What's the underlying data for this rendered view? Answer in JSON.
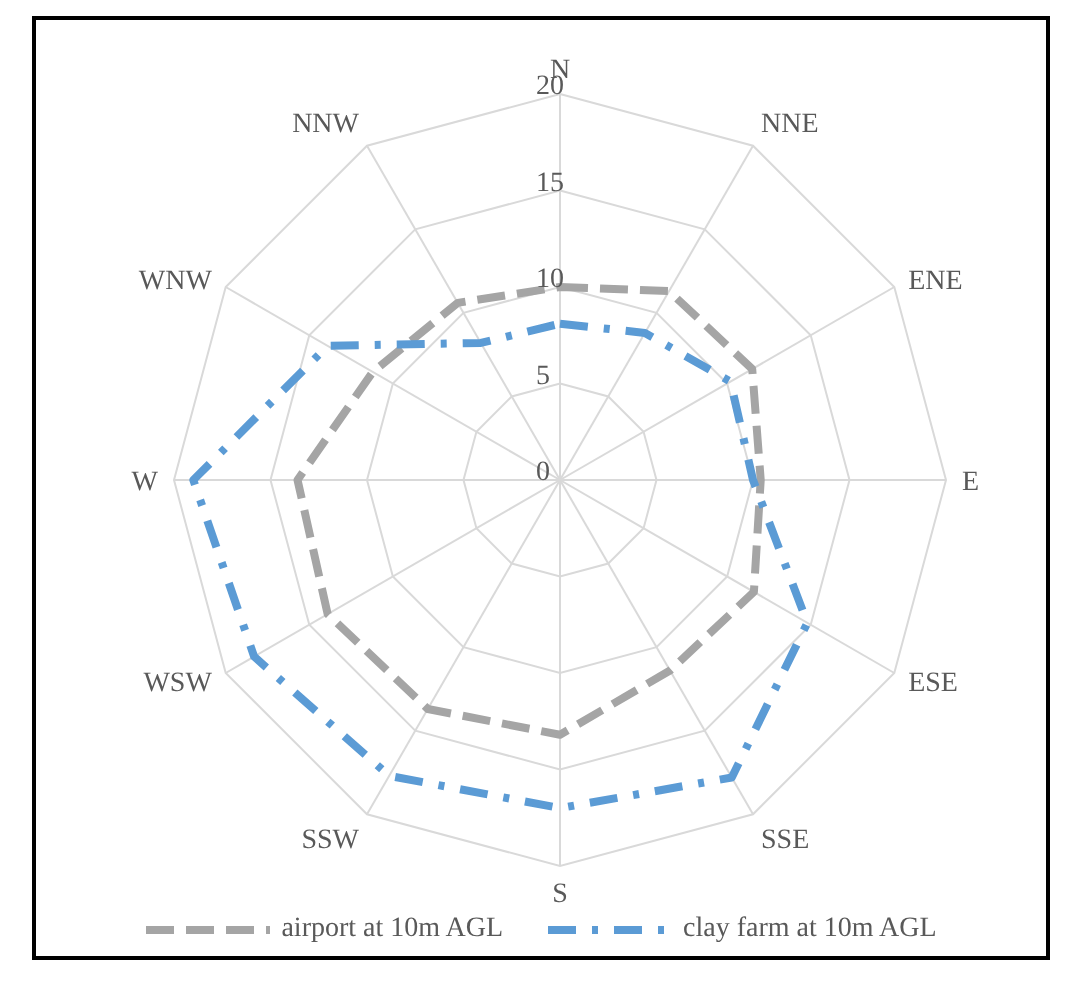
{
  "chart_data": {
    "type": "radar",
    "categories": [
      "N",
      "NNE",
      "ENE",
      "E",
      "ESE",
      "SSE",
      "S",
      "SSW",
      "WSW",
      "W",
      "WNW",
      "NNW"
    ],
    "series": [
      {
        "name": "airport at 10m AGL",
        "color": "#a5a5a5",
        "line_style": "dashed",
        "values": [
          10,
          11.3,
          11.5,
          10.4,
          11.6,
          11.4,
          13.2,
          13.7,
          13.9,
          13.6,
          11.2,
          10.6
        ]
      },
      {
        "name": "clay farm at 10m AGL",
        "color": "#5b9bd5",
        "line_style": "dashed",
        "values": [
          8.1,
          8.8,
          10.2,
          10,
          14.8,
          17.8,
          17,
          17.7,
          18.3,
          19,
          13.9,
          8.2
        ]
      }
    ],
    "ylim": [
      0,
      20
    ],
    "yticks": [
      0,
      5,
      10,
      15,
      20
    ],
    "grid": true,
    "legend": "bottom"
  }
}
